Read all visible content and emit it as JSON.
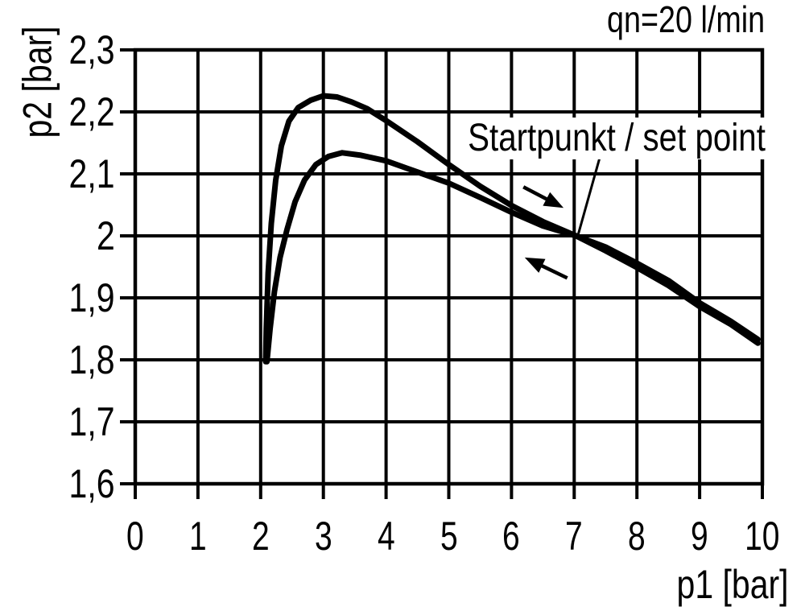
{
  "chart_data": {
    "type": "line",
    "title": "qn=20 l/min",
    "xlabel": "p1 [bar]",
    "ylabel": "p2 [bar]",
    "xlim": [
      0,
      10
    ],
    "ylim": [
      1.6,
      2.3
    ],
    "grid": true,
    "ink_color": "#000000",
    "background_color": "#ffffff",
    "x_axis": {
      "tick_values": [
        0,
        1,
        2,
        3,
        4,
        5,
        6,
        7,
        8,
        9,
        10
      ],
      "tick_labels": [
        "0",
        "1",
        "2",
        "3",
        "4",
        "5",
        "6",
        "7",
        "8",
        "9",
        "10"
      ]
    },
    "y_axis": {
      "tick_values": [
        2.3,
        2.2,
        2.1,
        2.0,
        1.9,
        1.8,
        1.7,
        1.6
      ],
      "tick_labels": [
        "2,3",
        "2,2",
        "2,1",
        "2",
        "1,9",
        "1,8",
        "1,7",
        "1,6"
      ]
    },
    "series": [
      {
        "name": "outbound branch (upper curve, peak 2.22 bar near p1=3)",
        "points": [
          [
            2.08,
            1.797
          ],
          [
            2.09,
            1.85
          ],
          [
            2.12,
            1.94
          ],
          [
            2.17,
            2.02
          ],
          [
            2.24,
            2.09
          ],
          [
            2.33,
            2.145
          ],
          [
            2.45,
            2.185
          ],
          [
            2.6,
            2.207
          ],
          [
            2.8,
            2.219
          ],
          [
            3.0,
            2.226
          ],
          [
            3.22,
            2.224
          ],
          [
            3.45,
            2.216
          ],
          [
            3.7,
            2.205
          ],
          [
            4.0,
            2.186
          ],
          [
            4.5,
            2.152
          ],
          [
            5.0,
            2.115
          ],
          [
            5.5,
            2.08
          ],
          [
            6.0,
            2.049
          ],
          [
            6.5,
            2.023
          ],
          [
            7.03,
            2.0
          ],
          [
            7.5,
            1.976
          ],
          [
            8.0,
            1.949
          ],
          [
            8.5,
            1.92
          ],
          [
            9.0,
            1.886
          ],
          [
            9.5,
            1.857
          ],
          [
            9.93,
            1.827
          ]
        ]
      },
      {
        "name": "return branch (lower curve, peak 2.13 bar near p1=3.3)",
        "points": [
          [
            2.1,
            1.797
          ],
          [
            2.15,
            1.85
          ],
          [
            2.22,
            1.91
          ],
          [
            2.31,
            1.965
          ],
          [
            2.42,
            2.01
          ],
          [
            2.55,
            2.055
          ],
          [
            2.7,
            2.09
          ],
          [
            2.88,
            2.115
          ],
          [
            3.08,
            2.128
          ],
          [
            3.3,
            2.134
          ],
          [
            3.6,
            2.13
          ],
          [
            4.0,
            2.121
          ],
          [
            4.5,
            2.103
          ],
          [
            5.0,
            2.085
          ],
          [
            5.5,
            2.062
          ],
          [
            6.0,
            2.038
          ],
          [
            6.5,
            2.016
          ],
          [
            7.03,
            2.0
          ],
          [
            7.5,
            1.982
          ],
          [
            8.0,
            1.956
          ],
          [
            8.5,
            1.928
          ],
          [
            9.0,
            1.892
          ],
          [
            9.5,
            1.862
          ],
          [
            9.93,
            1.833
          ]
        ]
      }
    ],
    "direction_arrows": [
      {
        "name": "direction-arrow-right",
        "from": [
          6.19,
          2.079
        ],
        "to": [
          6.83,
          2.045
        ]
      },
      {
        "name": "direction-arrow-left",
        "from": [
          6.89,
          1.932
        ],
        "to": [
          6.21,
          1.965
        ]
      }
    ],
    "annotation": {
      "label": "Startpunkt / set point",
      "target_point": {
        "p1": 7,
        "p2": 2.0
      },
      "pointer_line": {
        "from": [
          7.41,
          2.127
        ],
        "to": [
          7.06,
          2.001
        ]
      }
    }
  }
}
